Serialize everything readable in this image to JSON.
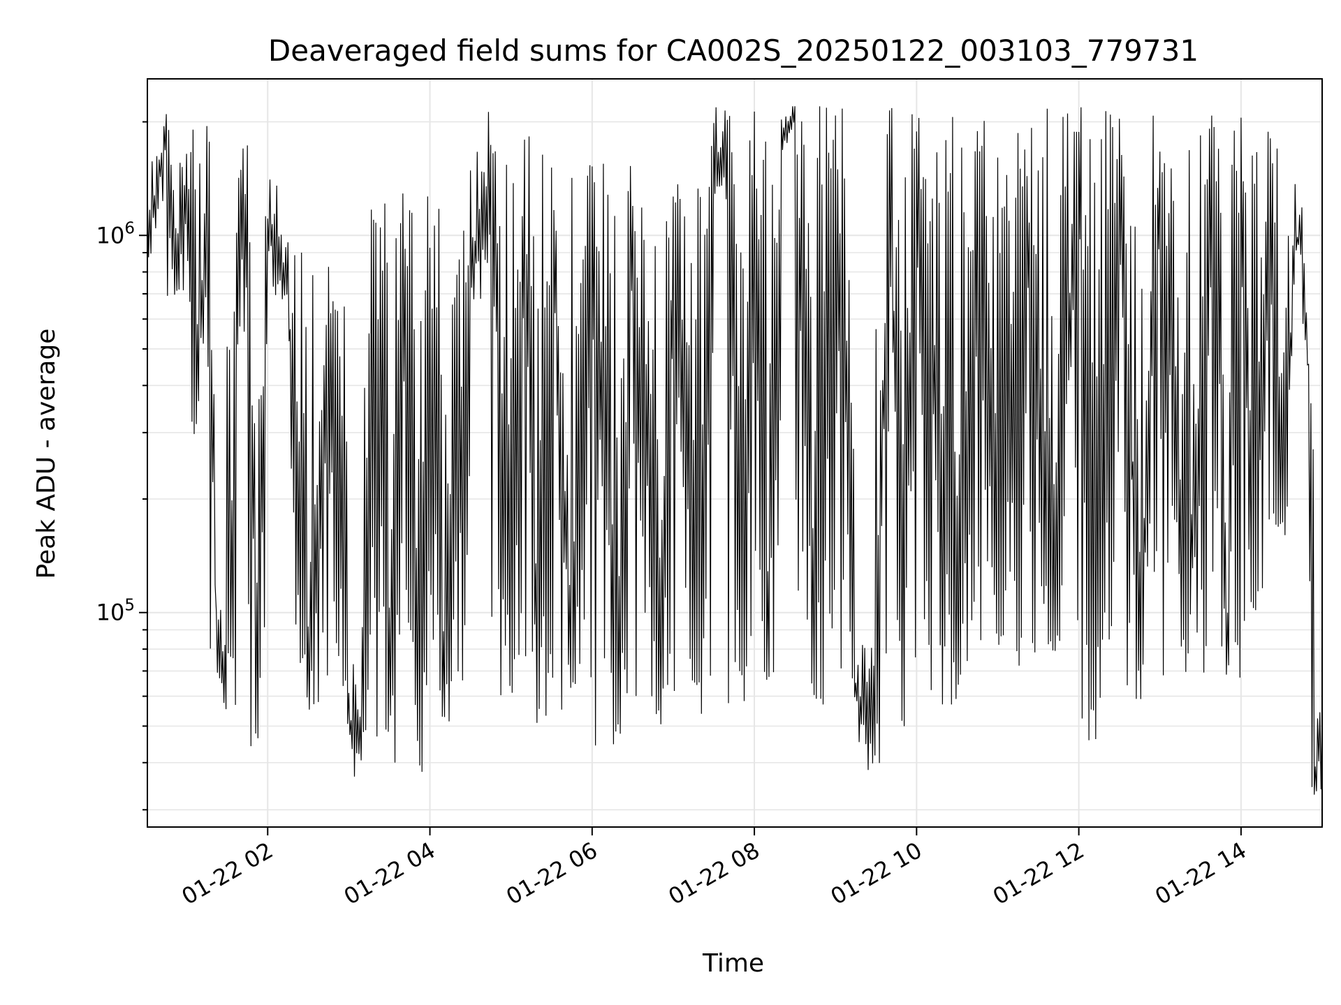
{
  "chart_data": {
    "type": "line",
    "title": "Deaveraged field sums for CA002S_20250122_003103_779731",
    "xlabel": "Time",
    "ylabel": "Peak ADU - average",
    "yscale": "log",
    "ylim": [
      27000,
      2600000
    ],
    "xlim": [
      "01-22 00:31",
      "01-22 15:00"
    ],
    "x_ticks": [
      "01-22 02",
      "01-22 04",
      "01-22 06",
      "01-22 08",
      "01-22 10",
      "01-22 12",
      "01-22 14"
    ],
    "y_ticks": [
      {
        "base": "10",
        "exp": "5"
      },
      {
        "base": "10",
        "exp": "6"
      }
    ],
    "grid": true,
    "line_color": "#000000",
    "series": [
      {
        "values": [
          [
            "01-22 00:31",
            900000
          ],
          [
            "01-22 00:38",
            1300000
          ],
          [
            "01-22 00:45",
            1900000
          ],
          [
            "01-22 00:52",
            700000
          ],
          [
            "01-22 01:00",
            1400000
          ],
          [
            "01-22 01:08",
            300000
          ],
          [
            "01-22 01:15",
            1500000
          ],
          [
            "01-22 01:22",
            90000
          ],
          [
            "01-22 01:30",
            60000
          ],
          [
            "01-22 01:37",
            500000
          ],
          [
            "01-22 01:45",
            1500000
          ],
          [
            "01-22 01:52",
            48000
          ],
          [
            "01-22 02:00",
            1000000
          ],
          [
            "01-22 02:15",
            700000
          ],
          [
            "01-22 02:30",
            52000
          ],
          [
            "01-22 02:45",
            600000
          ],
          [
            "01-22 03:00",
            50000
          ],
          [
            "01-22 03:10",
            40000
          ],
          [
            "01-22 03:20",
            900000
          ],
          [
            "01-22 03:30",
            45000
          ],
          [
            "01-22 03:45",
            1000000
          ],
          [
            "01-22 03:50",
            38000
          ],
          [
            "01-22 04:00",
            900000
          ],
          [
            "01-22 04:10",
            50000
          ],
          [
            "01-22 04:30",
            700000
          ],
          [
            "01-22 04:45",
            1400000
          ],
          [
            "01-22 05:00",
            60000
          ],
          [
            "01-22 05:10",
            1300000
          ],
          [
            "01-22 05:20",
            50000
          ],
          [
            "01-22 05:30",
            1100000
          ],
          [
            "01-22 05:45",
            60000
          ],
          [
            "01-22 06:00",
            1200000
          ],
          [
            "01-22 06:20",
            45000
          ],
          [
            "01-22 06:30",
            1100000
          ],
          [
            "01-22 06:50",
            55000
          ],
          [
            "01-22 07:00",
            1000000
          ],
          [
            "01-22 07:20",
            60000
          ],
          [
            "01-22 07:30",
            1300000
          ],
          [
            "01-22 07:40",
            2000000
          ],
          [
            "01-22 07:50",
            60000
          ],
          [
            "01-22 08:00",
            1900000
          ],
          [
            "01-22 08:10",
            65000
          ],
          [
            "01-22 08:20",
            1800000
          ],
          [
            "01-22 08:30",
            2200000
          ],
          [
            "01-22 08:45",
            60000
          ],
          [
            "01-22 09:00",
            1900000
          ],
          [
            "01-22 09:15",
            60000
          ],
          [
            "01-22 09:30",
            42000
          ],
          [
            "01-22 09:40",
            1700000
          ],
          [
            "01-22 09:50",
            52000
          ],
          [
            "01-22 10:00",
            1800000
          ],
          [
            "01-22 10:30",
            60000
          ],
          [
            "01-22 10:45",
            1700000
          ],
          [
            "01-22 11:00",
            80000
          ],
          [
            "01-22 11:20",
            1600000
          ],
          [
            "01-22 11:40",
            80000
          ],
          [
            "01-22 12:00",
            1700000
          ],
          [
            "01-22 12:10",
            48000
          ],
          [
            "01-22 12:30",
            1800000
          ],
          [
            "01-22 12:45",
            60000
          ],
          [
            "01-22 13:00",
            1600000
          ],
          [
            "01-22 13:20",
            70000
          ],
          [
            "01-22 13:40",
            1800000
          ],
          [
            "01-22 13:50",
            65000
          ],
          [
            "01-22 14:00",
            1800000
          ],
          [
            "01-22 14:10",
            90000
          ],
          [
            "01-22 14:20",
            1500000
          ],
          [
            "01-22 14:30",
            160000
          ],
          [
            "01-22 14:40",
            900000
          ],
          [
            "01-22 14:45",
            1000000
          ],
          [
            "01-22 14:50",
            400000
          ],
          [
            "01-22 14:55",
            34000
          ],
          [
            "01-22 15:00",
            55000
          ]
        ]
      }
    ]
  }
}
